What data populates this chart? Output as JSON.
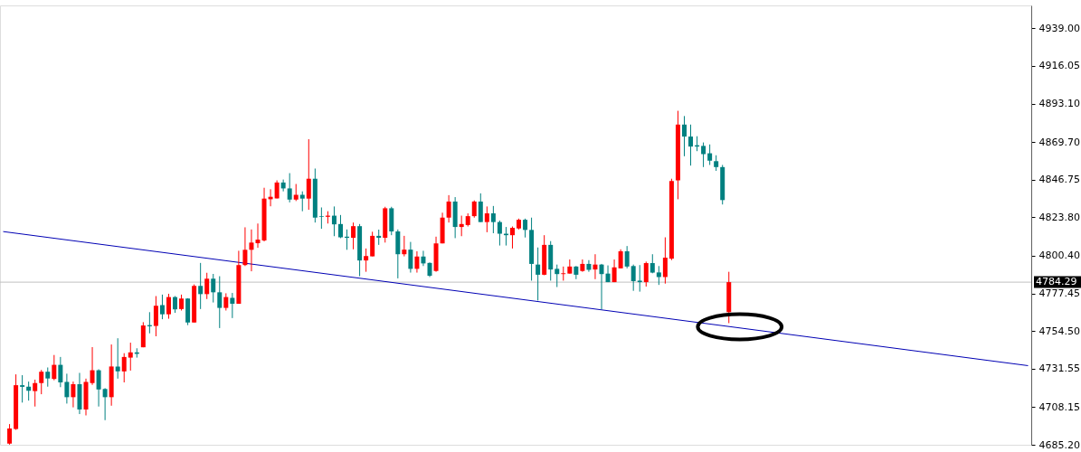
{
  "chart_data": {
    "type": "candlestick",
    "categories": [
      null,
      null,
      null,
      null,
      null,
      null,
      null,
      null,
      null,
      null,
      null,
      null,
      null,
      null,
      null,
      null,
      null,
      null,
      null,
      null,
      null,
      null,
      null,
      null,
      null,
      null,
      null,
      null,
      null,
      null,
      null,
      null,
      null,
      null,
      null,
      null,
      null,
      null,
      null,
      null,
      null,
      null,
      null,
      null,
      null,
      null,
      null,
      null,
      null,
      null,
      null,
      null,
      null,
      null,
      null,
      null,
      null,
      null,
      null,
      null,
      null,
      null,
      null,
      null,
      null,
      null,
      null,
      null,
      null,
      null,
      null,
      null,
      null,
      null,
      null,
      null,
      null,
      null,
      null,
      null,
      null,
      null,
      null,
      null,
      null,
      null,
      null,
      null,
      null,
      null,
      null,
      null,
      null,
      null,
      null,
      null,
      null,
      null,
      null,
      null,
      null,
      null,
      null,
      null,
      null,
      null,
      null,
      null,
      null,
      null,
      null,
      null,
      null,
      null,
      null,
      null,
      null,
      null,
      null,
      null,
      null,
      null,
      null,
      null,
      null,
      null,
      null,
      null,
      null,
      null,
      null,
      null,
      null,
      null,
      null,
      null,
      null,
      null,
      null,
      null,
      null,
      null,
      null,
      null,
      null,
      null,
      null,
      null,
      null,
      null,
      null,
      null,
      null,
      null,
      null,
      null,
      null,
      null,
      null,
      null,
      null,
      null
    ],
    "ohlc": [
      null,
      [
        4685.9,
        4697.8,
        4685.3,
        4695.1
      ],
      [
        4694.8,
        4728.1,
        4694.3,
        4721.5
      ],
      [
        4721.5,
        4727.6,
        4710.9,
        4720.5
      ],
      [
        4720.6,
        4723.7,
        4712.1,
        4718.1
      ],
      [
        4717.9,
        4724.9,
        4708.5,
        4722.8
      ],
      [
        4722.8,
        4730.8,
        4716.0,
        4729.7
      ],
      [
        4729.7,
        4732.3,
        4720.6,
        4725.6
      ],
      [
        4725.3,
        4739.9,
        4724.5,
        4733.9
      ],
      [
        4733.9,
        4738.7,
        4720.3,
        4723.2
      ],
      [
        4723.5,
        4728.5,
        4710.3,
        4714.2
      ],
      [
        4714.2,
        4723.7,
        4708.0,
        4722.1
      ],
      [
        4722.1,
        4729.0,
        4703.9,
        4706.7
      ],
      [
        4706.7,
        4725.5,
        4703.1,
        4723.5
      ],
      [
        4722.8,
        4744.7,
        4721.7,
        4730.6
      ],
      [
        4730.6,
        4731.2,
        4708.5,
        4718.9
      ],
      [
        4719.2,
        4719.7,
        4700.2,
        4714.2
      ],
      [
        4714.2,
        4746.3,
        4709.0,
        4732.9
      ],
      [
        4732.9,
        4750.1,
        4725.5,
        4729.9
      ],
      [
        4729.9,
        4741.0,
        4723.2,
        4738.7
      ],
      [
        4738.3,
        4747.4,
        4730.4,
        4741.5
      ],
      [
        4741.5,
        4744.0,
        4738.3,
        4740.6
      ],
      [
        4744.6,
        4759.9,
        4744.6,
        4757.9
      ],
      [
        4758.1,
        4766.0,
        4753.1,
        4757.4
      ],
      [
        4757.6,
        4775.8,
        4751.3,
        4769.9
      ],
      [
        4770.3,
        4776.7,
        4761.7,
        4764.7
      ],
      [
        4764.7,
        4777.2,
        4762.0,
        4775.2
      ],
      [
        4775.2,
        4775.8,
        4765.6,
        4767.7
      ],
      [
        4767.9,
        4776.7,
        4767.0,
        4774.3
      ],
      [
        4774.3,
        4774.5,
        4758.1,
        4759.7
      ],
      [
        4759.7,
        4782.9,
        4759.7,
        4782.0
      ],
      [
        4782.0,
        4796.0,
        4767.9,
        4777.0
      ],
      [
        4777.0,
        4790.0,
        4774.0,
        4786.4
      ],
      [
        4786.4,
        4789.3,
        4771.9,
        4778.1
      ],
      [
        4778.1,
        4787.9,
        4756.3,
        4768.6
      ],
      [
        4768.6,
        4777.5,
        4767.0,
        4775.2
      ],
      [
        4774.7,
        4777.7,
        4762.4,
        4771.1
      ],
      [
        4771.1,
        4803.4,
        4771.1,
        4794.7
      ],
      [
        4794.7,
        4817.7,
        4794.1,
        4804.0
      ],
      [
        4804.0,
        4816.4,
        4790.9,
        4808.4
      ],
      [
        4808.0,
        4820.0,
        4805.2,
        4810.2
      ],
      [
        4809.7,
        4841.8,
        4809.1,
        4835.2
      ],
      [
        4834.8,
        4840.9,
        4830.5,
        4836.3
      ],
      [
        4835.3,
        4846.3,
        4835.3,
        4845.0
      ],
      [
        4845.0,
        4846.8,
        4839.6,
        4841.4
      ],
      [
        4841.4,
        4850.7,
        4832.9,
        4834.6
      ],
      [
        4834.6,
        4844.1,
        4833.7,
        4837.5
      ],
      [
        4837.5,
        4839.6,
        4827.5,
        4835.2
      ],
      [
        4835.2,
        4871.4,
        4828.4,
        4847.3
      ],
      [
        4847.3,
        4853.5,
        4820.6,
        4823.6
      ],
      [
        4824.5,
        4829.8,
        4816.8,
        4824.1
      ],
      [
        4824.1,
        4827.5,
        4820.0,
        4824.8
      ],
      [
        4824.8,
        4830.4,
        4812.3,
        4819.5
      ],
      [
        4819.7,
        4825.2,
        4811.1,
        4811.6
      ],
      [
        4812.0,
        4816.4,
        4804.0,
        4811.3
      ],
      [
        4811.3,
        4820.6,
        4804.3,
        4818.4
      ],
      [
        4818.4,
        4819.7,
        4787.9,
        4797.5
      ],
      [
        4797.5,
        4804.8,
        4790.6,
        4800.2
      ],
      [
        4800.0,
        4815.0,
        4800.0,
        4812.5
      ],
      [
        4812.5,
        4816.3,
        4807.0,
        4811.3
      ],
      [
        4811.3,
        4830.2,
        4808.4,
        4829.3
      ],
      [
        4829.3,
        4830.2,
        4812.9,
        4815.2
      ],
      [
        4815.2,
        4816.4,
        4786.6,
        4801.3
      ],
      [
        4801.3,
        4812.5,
        4800.0,
        4804.1
      ],
      [
        4804.1,
        4808.8,
        4790.1,
        4792.4
      ],
      [
        4792.4,
        4803.1,
        4790.1,
        4799.9
      ],
      [
        4799.9,
        4803.4,
        4794.1,
        4795.7
      ],
      [
        4796.0,
        4796.3,
        4787.4,
        4788.2
      ],
      [
        4791.1,
        4812.0,
        4790.6,
        4807.9
      ],
      [
        4807.9,
        4826.6,
        4807.9,
        4823.6
      ],
      [
        4823.6,
        4837.3,
        4820.6,
        4833.4
      ],
      [
        4833.4,
        4836.1,
        4811.1,
        4817.9
      ],
      [
        4817.9,
        4824.8,
        4812.3,
        4819.7
      ],
      [
        4819.1,
        4826.2,
        4818.2,
        4824.5
      ],
      [
        4824.5,
        4834.1,
        4823.6,
        4833.4
      ],
      [
        4833.4,
        4838.4,
        4820.9,
        4820.9
      ],
      [
        4820.9,
        4830.4,
        4814.7,
        4826.2
      ],
      [
        4826.2,
        4830.7,
        4814.1,
        4820.9
      ],
      [
        4820.9,
        4821.8,
        4806.6,
        4813.8
      ],
      [
        4813.8,
        4817.9,
        4806.6,
        4812.9
      ],
      [
        4812.9,
        4818.2,
        4804.8,
        4817.4
      ],
      [
        4817.0,
        4823.0,
        4816.4,
        4822.3
      ],
      [
        4822.3,
        4823.0,
        4811.5,
        4816.1
      ],
      [
        4816.1,
        4823.6,
        4785.2,
        4795.4
      ],
      [
        4795.0,
        4805.4,
        4773.1,
        4788.8
      ],
      [
        4788.8,
        4812.9,
        4788.5,
        4807.0
      ],
      [
        4807.0,
        4809.3,
        4785.2,
        4792.0
      ],
      [
        4792.4,
        4795.0,
        4781.3,
        4789.2
      ],
      [
        4789.2,
        4793.8,
        4785.2,
        4789.7
      ],
      [
        4789.5,
        4798.1,
        4789.5,
        4793.8
      ],
      [
        4793.8,
        4794.1,
        4786.1,
        4788.8
      ],
      [
        4791.1,
        4798.1,
        4790.6,
        4795.4
      ],
      [
        4795.4,
        4797.7,
        4790.6,
        4791.8
      ],
      [
        4792.0,
        4801.3,
        4786.1,
        4795.0
      ],
      [
        4795.0,
        4795.4,
        4767.7,
        4789.2
      ],
      [
        4789.5,
        4794.5,
        4784.3,
        4784.3
      ],
      [
        4784.3,
        4798.1,
        4784.3,
        4793.3
      ],
      [
        4792.7,
        4804.3,
        4792.7,
        4803.1
      ],
      [
        4803.1,
        4806.3,
        4792.7,
        4793.8
      ],
      [
        4794.1,
        4795.0,
        4779.0,
        4784.9
      ],
      [
        4785.2,
        4794.7,
        4778.5,
        4784.3
      ],
      [
        4784.3,
        4796.8,
        4781.6,
        4795.9
      ],
      [
        4795.9,
        4801.3,
        4789.7,
        4790.1
      ],
      [
        4790.2,
        4794.1,
        4782.6,
        4787.4
      ],
      [
        4787.4,
        4811.6,
        4783.4,
        4799.2
      ],
      [
        4798.6,
        4847.3,
        4797.7,
        4845.9
      ],
      [
        4846.3,
        4888.7,
        4834.8,
        4880.3
      ],
      [
        4880.3,
        4885.5,
        4861.0,
        4873.0
      ],
      [
        4873.0,
        4880.3,
        4855.3,
        4866.9
      ],
      [
        4867.7,
        4873.2,
        4864.1,
        4866.9
      ],
      [
        4867.3,
        4869.4,
        4854.4,
        4862.3
      ],
      [
        4862.8,
        4868.2,
        4855.7,
        4858.3
      ],
      [
        4858.0,
        4861.6,
        4852.1,
        4854.4
      ],
      [
        4854.4,
        4855.7,
        4831.6,
        4834.3
      ],
      [
        4766.0,
        4790.6,
        4759.3,
        4784.3
      ],
      null,
      null,
      null,
      null,
      null,
      null,
      null,
      null,
      null,
      null,
      null,
      null,
      null,
      null,
      null,
      null,
      null,
      null,
      null,
      null,
      null,
      null,
      null,
      null,
      null,
      null,
      null,
      null,
      null,
      null,
      null,
      null,
      null,
      null,
      null,
      null,
      null,
      null,
      null,
      null,
      null,
      null,
      null,
      null,
      null,
      null,
      null
    ],
    "colors": [
      null,
      "#ff0000",
      "#ff0000",
      "#008080",
      "#008080",
      "#ff0000",
      "#ff0000",
      "#008080",
      "#ff0000",
      "#008080",
      "#008080",
      "#ff0000",
      "#008080",
      "#ff0000",
      "#ff0000",
      "#008080",
      "#008080",
      "#ff0000",
      "#008080",
      "#ff0000",
      "#ff0000",
      "#008080",
      "#ff0000",
      "#008080",
      "#ff0000",
      "#008080",
      "#ff0000",
      "#008080",
      "#ff0000",
      "#008080",
      "#ff0000",
      "#008080",
      "#ff0000",
      "#008080",
      "#008080",
      "#ff0000",
      "#008080",
      "#ff0000",
      "#ff0000",
      "#ff0000",
      "#ff0000",
      "#ff0000",
      "#ff0000",
      "#ff0000",
      "#008080",
      "#008080",
      "#ff0000",
      "#008080",
      "#ff0000",
      "#008080",
      "#008080",
      "#ff0000",
      "#008080",
      "#008080",
      "#008080",
      "#ff0000",
      "#008080",
      "#ff0000",
      "#ff0000",
      "#008080",
      "#ff0000",
      "#008080",
      "#008080",
      "#ff0000",
      "#008080",
      "#ff0000",
      "#008080",
      "#008080",
      "#ff0000",
      "#ff0000",
      "#ff0000",
      "#008080",
      "#ff0000",
      "#ff0000",
      "#ff0000",
      "#008080",
      "#ff0000",
      "#008080",
      "#008080",
      "#008080",
      "#ff0000",
      "#ff0000",
      "#008080",
      "#008080",
      "#008080",
      "#ff0000",
      "#008080",
      "#008080",
      "#ff0000",
      "#ff0000",
      "#008080",
      "#ff0000",
      "#008080",
      "#ff0000",
      "#008080",
      "#008080",
      "#ff0000",
      "#ff0000",
      "#008080",
      "#008080",
      "#008080",
      "#ff0000",
      "#008080",
      "#008080",
      "#ff0000",
      "#ff0000",
      "#ff0000",
      "#008080",
      "#008080",
      "#008080",
      "#008080",
      "#008080",
      "#008080",
      "#008080",
      "#ff0000",
      null,
      null,
      null,
      null,
      null,
      null,
      null,
      null,
      null,
      null,
      null,
      null,
      null,
      null,
      null,
      null,
      null,
      null,
      null,
      null,
      null,
      null,
      null,
      null,
      null,
      null,
      null,
      null,
      null,
      null,
      null,
      null,
      null,
      null,
      null,
      null,
      null,
      null,
      null,
      null,
      null,
      null,
      null,
      null,
      null,
      null,
      null
    ],
    "series": [
      {
        "type": "line",
        "color": "#0000b4",
        "values": [
          4815.1,
          null,
          null,
          null,
          null,
          null,
          null,
          null,
          null,
          null,
          null,
          null,
          null,
          null,
          null,
          null,
          null,
          null,
          null,
          null,
          null,
          null,
          null,
          null,
          null,
          null,
          null,
          null,
          null,
          null,
          null,
          null,
          null,
          null,
          null,
          null,
          null,
          null,
          null,
          null,
          null,
          null,
          null,
          null,
          null,
          null,
          null,
          null,
          null,
          null,
          null,
          null,
          null,
          null,
          null,
          null,
          null,
          null,
          null,
          null,
          null,
          null,
          null,
          null,
          null,
          null,
          null,
          null,
          null,
          null,
          null,
          null,
          null,
          null,
          null,
          null,
          null,
          null,
          null,
          null,
          null,
          null,
          null,
          null,
          null,
          null,
          null,
          null,
          null,
          null,
          null,
          null,
          null,
          null,
          null,
          null,
          null,
          null,
          null,
          null,
          null,
          null,
          null,
          null,
          null,
          null,
          null,
          null,
          null,
          null,
          null,
          null,
          null,
          null,
          null,
          null,
          null,
          null,
          null,
          null,
          null,
          null,
          null,
          null,
          null,
          null,
          null,
          null,
          null,
          null,
          null,
          null,
          null,
          null,
          null,
          null,
          null,
          null,
          null,
          null,
          null,
          null,
          null,
          null,
          null,
          null,
          null,
          null,
          null,
          null,
          null,
          null,
          null,
          null,
          null,
          null,
          null,
          null,
          null,
          null,
          null,
          4733.4
        ]
      }
    ],
    "ylim": [
      4685.2,
      4952.9
    ],
    "yticks": [
      {
        "value": 4939,
        "label": "4939.00"
      },
      4916.05,
      {
        "value": 4893.1,
        "label": "4893.10"
      },
      {
        "value": 4869.7,
        "label": "4869.70"
      },
      4846.75,
      {
        "value": 4823.8,
        "label": "4823.80"
      },
      {
        "value": 4800.4,
        "label": "4800.40"
      },
      4777.45,
      {
        "value": 4754.5,
        "label": "4754.50"
      },
      4731.55,
      4708.15,
      {
        "value": 4685.2,
        "label": "4685.20"
      }
    ],
    "ref_lines": [
      {
        "axis": "y",
        "value": 4784.29,
        "label": "4784.29",
        "color": "#c0c0c0"
      }
    ],
    "tick_labels": "y",
    "grid": false
  }
}
